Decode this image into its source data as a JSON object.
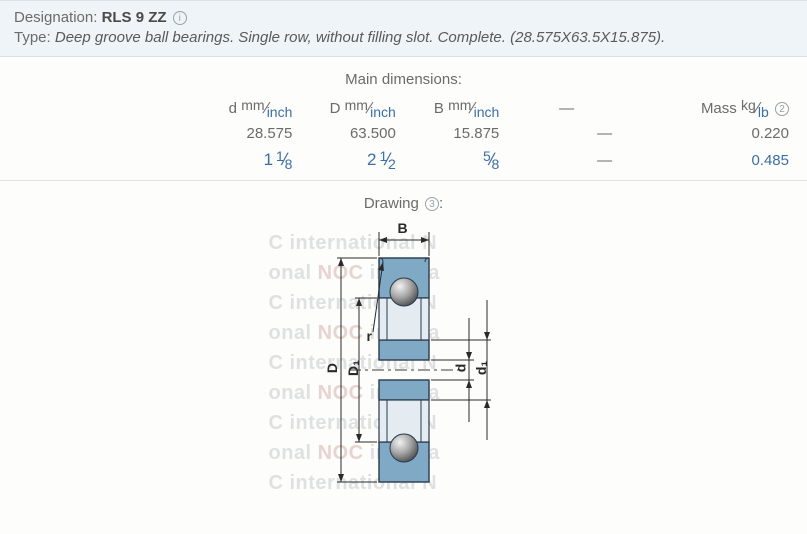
{
  "header": {
    "desig_label": "Designation:",
    "desig_value": "RLS 9 ZZ",
    "desig_info": "i",
    "type_label": "Type:",
    "type_value": "Deep groove ball bearings. Single row, without filling slot. Complete. (28.575X63.5X15.875)."
  },
  "dims": {
    "title": "Main dimensions:",
    "headers": {
      "d": "d",
      "D": "D",
      "B": "B",
      "mass": "Mass",
      "mass_info": "2",
      "unit_mm": "mm",
      "unit_inch": "inch",
      "unit_kg": "kg",
      "unit_lb": "lb"
    },
    "mm": {
      "d": "28.575",
      "D": "63.500",
      "B": "15.875",
      "mass": "0.220"
    },
    "inch": {
      "d_whole": "1",
      "d_num": "1",
      "d_den": "8",
      "D_whole": "2",
      "D_num": "1",
      "D_den": "2",
      "B_whole": "",
      "B_num": "5",
      "B_den": "8",
      "mass": "0.485"
    },
    "dash": "—"
  },
  "drawing": {
    "title": "Drawing",
    "info": "3",
    "labels": {
      "B": "B",
      "D": "D",
      "D1": "D₁",
      "d": "d",
      "d1": "d₁",
      "r": "r"
    },
    "colors": {
      "ring_fill": "#7fa9c5",
      "ring_stroke": "#2a3a4a",
      "inner_fill": "#e4ecf2",
      "axis": "#3a3a3a",
      "ball_light": "#e8e8e8",
      "ball_dark": "#6e6e6e"
    },
    "watermark_lines": [
      "C international  N",
      "onal   NOC interna",
      "C international  N",
      "onal   NOC interna",
      "C international  N",
      "onal   NOC interna",
      "C international  N",
      "onal   NOC interna",
      "C international  N"
    ]
  }
}
